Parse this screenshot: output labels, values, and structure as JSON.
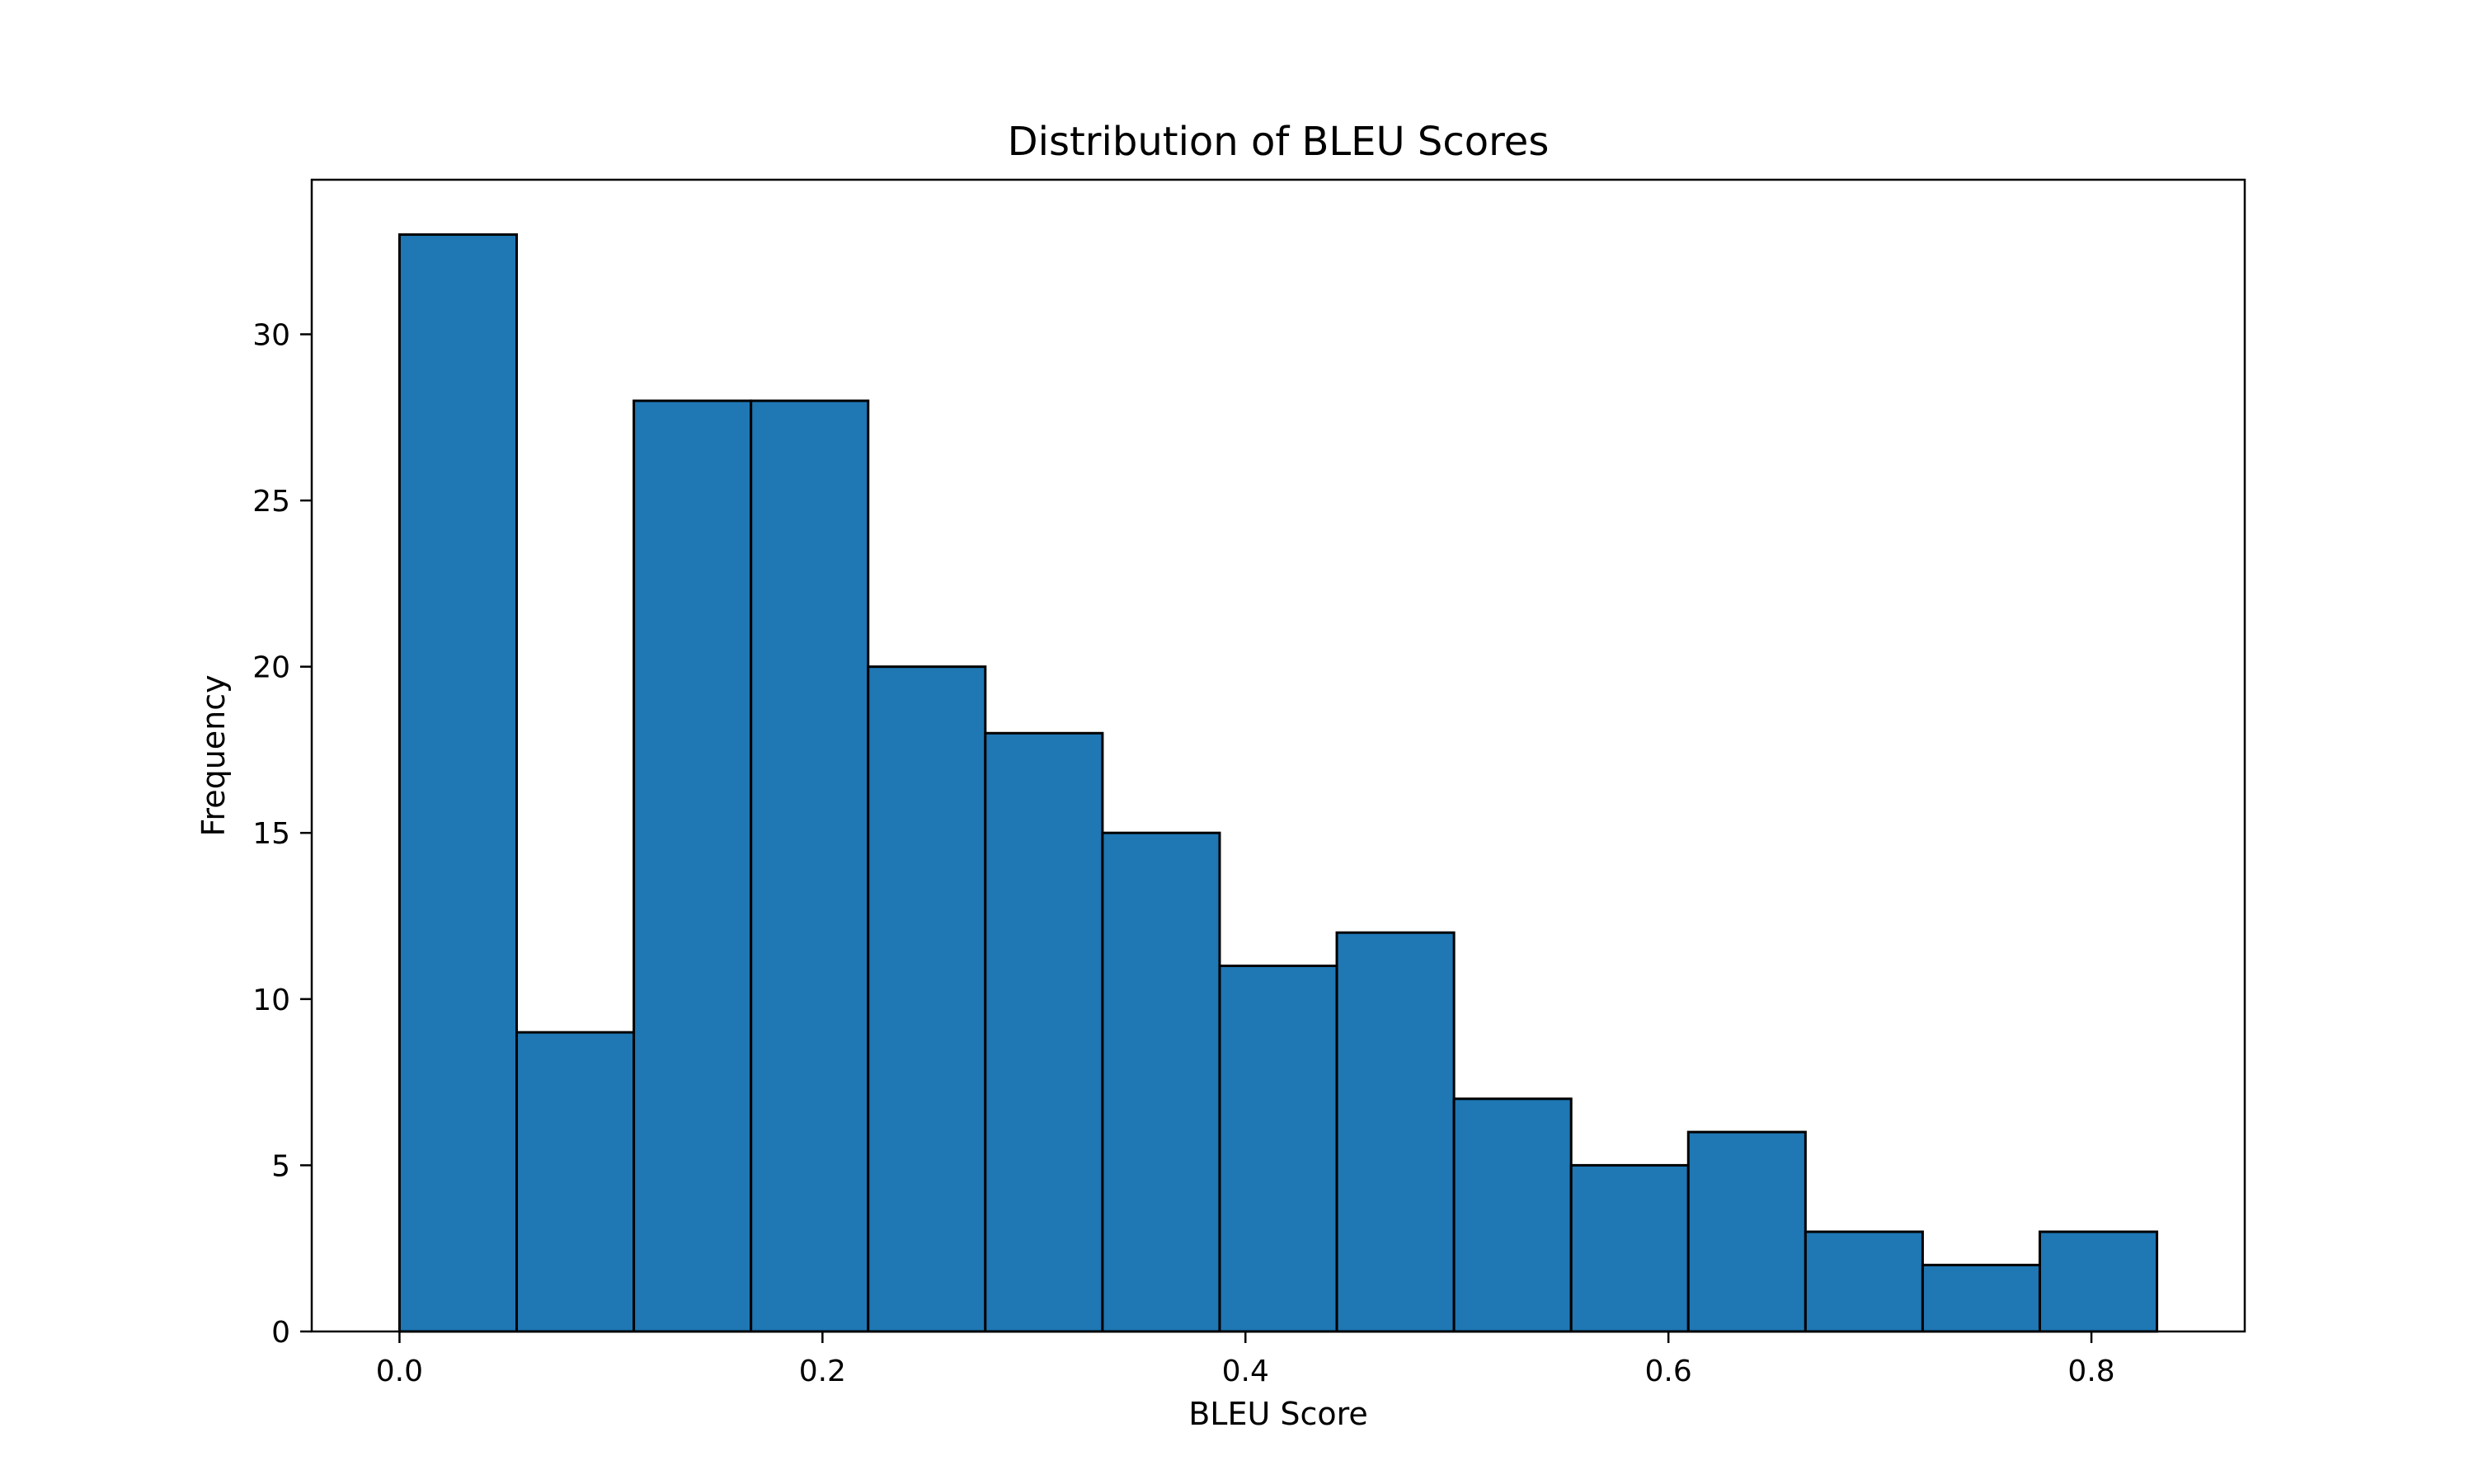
{
  "chart_data": {
    "type": "bar",
    "title": "Distribution of BLEU Scores",
    "xlabel": "BLEU Score",
    "ylabel": "Frequency",
    "bin_edges": [
      0.0,
      0.0554,
      0.1108,
      0.1662,
      0.2216,
      0.277,
      0.3324,
      0.3878,
      0.4432,
      0.4986,
      0.554,
      0.6094,
      0.6648,
      0.7202,
      0.7756,
      0.831
    ],
    "values": [
      33,
      9,
      28,
      28,
      20,
      18,
      15,
      11,
      12,
      7,
      5,
      6,
      3,
      2,
      3
    ],
    "xlim": [
      -0.0415,
      0.8725
    ],
    "ylim": [
      0,
      34.65
    ],
    "xticks": [
      0.0,
      0.2,
      0.4,
      0.6,
      0.8
    ],
    "xtick_labels": [
      "0.0",
      "0.2",
      "0.4",
      "0.6",
      "0.8"
    ],
    "yticks": [
      0,
      5,
      10,
      15,
      20,
      25,
      30
    ],
    "ytick_labels": [
      "0",
      "5",
      "10",
      "15",
      "20",
      "25",
      "30"
    ],
    "grid": false,
    "bar_color": "#1f77b4",
    "edge_color": "#000000"
  }
}
